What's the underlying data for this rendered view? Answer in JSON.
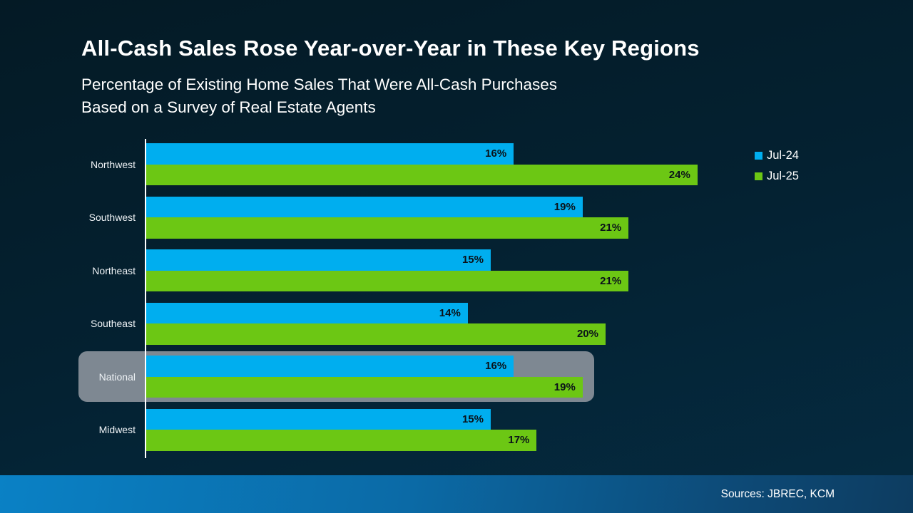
{
  "header": {
    "title": "All-Cash Sales Rose Year-over-Year in These Key Regions",
    "subtitle_line1": "Percentage of Existing Home Sales That Were All-Cash Purchases",
    "subtitle_line2": "Based on a Survey of Real Estate Agents"
  },
  "legend": {
    "items": [
      {
        "label": "Jul-24",
        "color": "#00aeef"
      },
      {
        "label": "Jul-25",
        "color": "#6cc714"
      }
    ]
  },
  "chart_data": {
    "type": "bar",
    "orientation": "horizontal",
    "title": "All-Cash Sales Rose Year-over-Year in These Key Regions",
    "categories": [
      "Northwest",
      "Southwest",
      "Northeast",
      "Southeast",
      "National",
      "Midwest"
    ],
    "series": [
      {
        "name": "Jul-24",
        "color": "#00aeef",
        "values": [
          16,
          19,
          15,
          14,
          16,
          15
        ]
      },
      {
        "name": "Jul-25",
        "color": "#6cc714",
        "values": [
          24,
          21,
          21,
          20,
          19,
          17
        ]
      }
    ],
    "value_suffix": "%",
    "value_label_color": "#0a1219",
    "highlighted_category": "National",
    "highlight_color": "#7e8892",
    "xlim": [
      0,
      25
    ],
    "grid": false,
    "legend_position": "top-right",
    "axis_line_color": "#ffffff"
  },
  "footer": {
    "sources": "Sources: JBREC, KCM"
  }
}
